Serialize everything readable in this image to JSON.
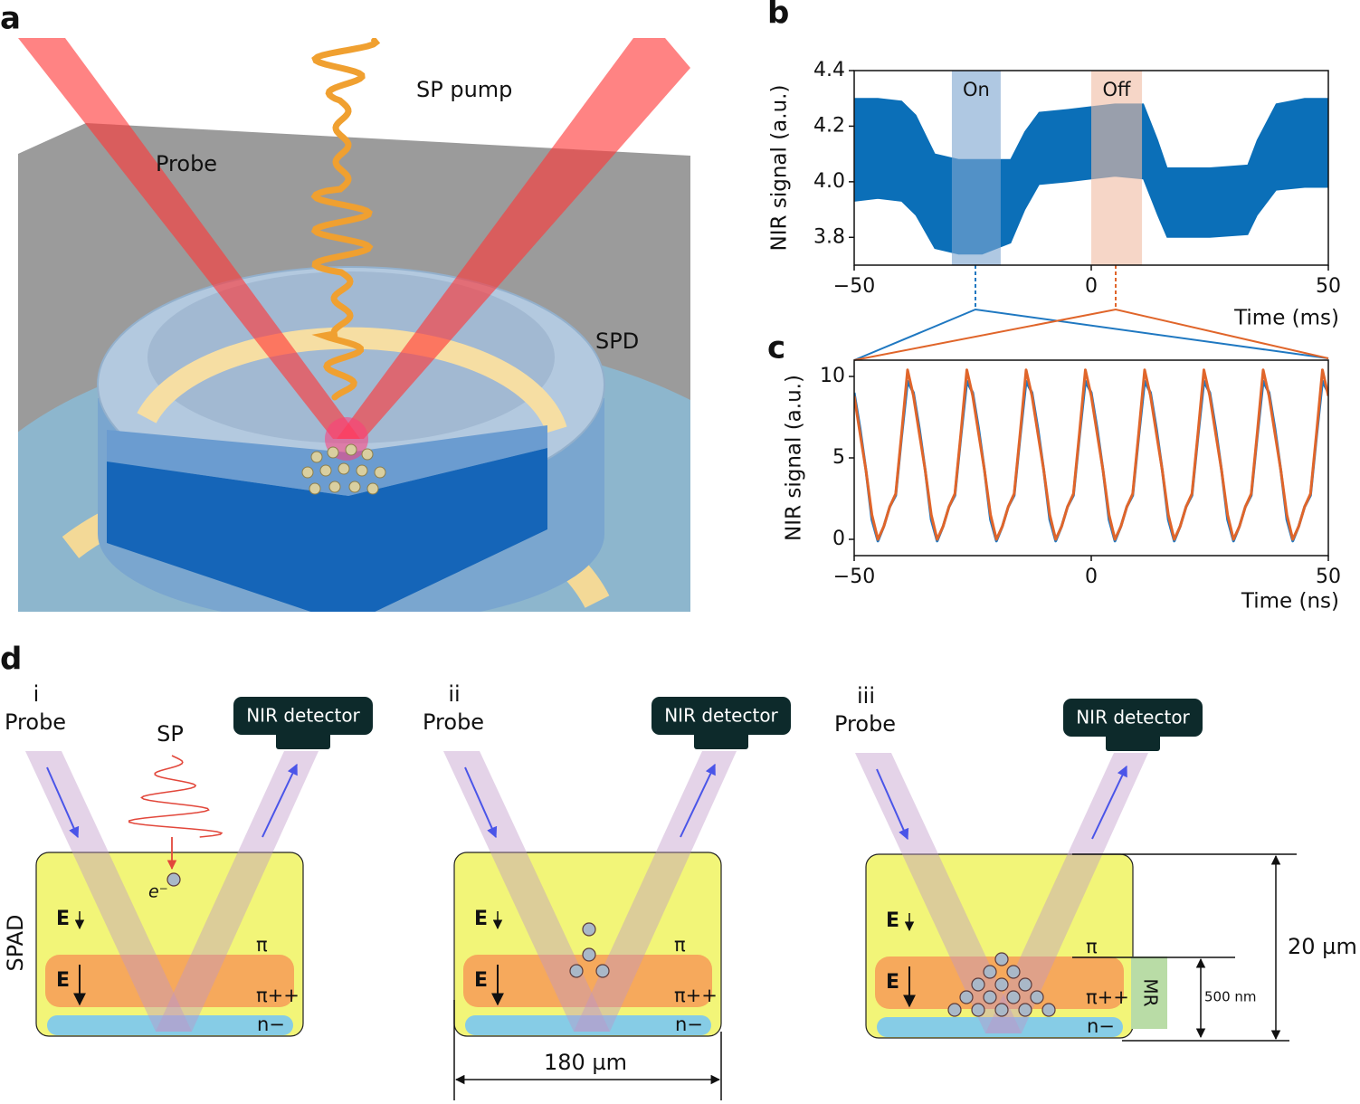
{
  "figure": {
    "panel_a": {
      "label": "a",
      "sp_pump": "SP pump",
      "probe": "Probe",
      "spd": "SPD"
    },
    "panel_d": {
      "label": "d",
      "side_label": "SPAD",
      "subpanels": [
        {
          "numeral": "i",
          "probe": "Probe",
          "detector": "NIR detector",
          "sp": "SP",
          "electron": "e⁻",
          "field_top": "E",
          "field_mid": "E",
          "layer_pi": "π",
          "layer_pipp": "π++",
          "layer_n": "n−"
        },
        {
          "numeral": "ii",
          "probe": "Probe",
          "detector": "NIR detector",
          "field_top": "E",
          "field_mid": "E",
          "layer_pi": "π",
          "layer_pipp": "π++",
          "layer_n": "n−",
          "width": "180 µm"
        },
        {
          "numeral": "iii",
          "probe": "Probe",
          "detector": "NIR detector",
          "field_top": "E",
          "field_mid": "E",
          "layer_pi": "π",
          "layer_pipp": "π++",
          "layer_n": "n−",
          "mr": "MR",
          "depletion": "500 nm",
          "thickness": "20 µm"
        }
      ]
    }
  },
  "chart_data": [
    {
      "type": "band",
      "panel_label": "b",
      "ylabel": "NIR signal (a.u.)",
      "xlabel": "Time (ms)",
      "color": "#0b6fb8",
      "x": [
        -50,
        -45,
        -40,
        -37,
        -33,
        -28,
        -23,
        -17,
        -14,
        -11,
        -5,
        0,
        5,
        11,
        14,
        16,
        25,
        33,
        35,
        39,
        45,
        50
      ],
      "upper": [
        4.3,
        4.3,
        4.29,
        4.24,
        4.1,
        4.08,
        4.08,
        4.08,
        4.18,
        4.25,
        4.26,
        4.27,
        4.28,
        4.28,
        4.15,
        4.05,
        4.05,
        4.06,
        4.15,
        4.28,
        4.3,
        4.3
      ],
      "lower": [
        3.93,
        3.94,
        3.93,
        3.88,
        3.76,
        3.74,
        3.74,
        3.78,
        3.9,
        3.99,
        4.0,
        4.01,
        4.02,
        4.01,
        3.88,
        3.8,
        3.8,
        3.81,
        3.88,
        3.97,
        3.98,
        3.98
      ],
      "shaded": [
        {
          "label": "On",
          "x": [
            -29.4,
            -19.1
          ],
          "color": "#7ea7d0"
        },
        {
          "label": "Off",
          "x": [
            0,
            10.7
          ],
          "color": "#f1bda4"
        }
      ],
      "xlim": [
        -50,
        50
      ],
      "ylim": [
        3.7,
        4.4
      ],
      "xticks": [
        {
          "value": -50,
          "label": "−50"
        },
        0,
        50
      ],
      "yticks": [
        3.8,
        {
          "value": 4.0,
          "label": "4.0"
        },
        4.2,
        4.4
      ]
    },
    {
      "type": "line",
      "panel_label": "c",
      "ylabel": "NIR signal (a.u.)",
      "xlabel": "Time (ns)",
      "x": [
        -50,
        -48.75,
        -47.5,
        -46.25,
        -45,
        -43.75,
        -42.5,
        -41.25,
        -40,
        -38.75,
        -37.5,
        -36.25,
        -35,
        -33.75,
        -32.5,
        -31.25,
        -30,
        -28.75,
        -27.5,
        -26.25,
        -25,
        -23.75,
        -22.5,
        -21.25,
        -20,
        -18.75,
        -17.5,
        -16.25,
        -15,
        -13.75,
        -12.5,
        -11.25,
        -10,
        -8.75,
        -7.5,
        -6.25,
        -5,
        -3.75,
        -2.5,
        -1.25,
        0,
        1.25,
        2.5,
        3.75,
        5,
        6.25,
        7.5,
        8.75,
        10,
        11.25,
        12.5,
        13.75,
        15,
        16.25,
        17.5,
        18.75,
        20,
        21.25,
        22.5,
        23.75,
        25,
        26.25,
        27.5,
        28.75,
        30,
        31.25,
        32.5,
        33.75,
        35,
        36.25,
        37.5,
        38.75,
        40,
        41.25,
        42.5,
        43.75,
        45,
        46.25,
        47.5,
        48.75,
        50
      ],
      "series": [
        {
          "color": "#1f78c1",
          "values": [
            9.0,
            6.8,
            4.2,
            1.2,
            -0.1,
            0.8,
            2.0,
            2.7,
            6.3,
            9.7,
            9.0,
            6.8,
            4.2,
            1.2,
            -0.1,
            0.8,
            2.0,
            2.7,
            6.3,
            9.7,
            9.0,
            6.8,
            4.2,
            1.2,
            -0.1,
            0.8,
            2.0,
            2.7,
            6.3,
            9.7,
            9.0,
            6.8,
            4.2,
            1.2,
            -0.1,
            0.8,
            2.0,
            2.7,
            6.3,
            9.7,
            9.0,
            6.8,
            4.2,
            1.2,
            -0.1,
            0.8,
            2.0,
            2.7,
            6.3,
            9.7,
            9.0,
            6.8,
            4.2,
            1.2,
            -0.1,
            0.8,
            2.0,
            2.7,
            6.3,
            9.7,
            9.0,
            6.8,
            4.2,
            1.2,
            -0.1,
            0.8,
            2.0,
            2.7,
            6.3,
            9.7,
            9.0,
            6.8,
            4.2,
            1.2,
            -0.1,
            0.8,
            2.0,
            2.7,
            6.3,
            9.7,
            9.0
          ]
        },
        {
          "color": "#e0652a",
          "values": [
            8.8,
            6.5,
            4.2,
            1.5,
            0,
            0.8,
            2.0,
            2.8,
            6.5,
            10.4,
            8.8,
            6.5,
            4.2,
            1.5,
            0,
            0.8,
            2.0,
            2.8,
            6.5,
            10.4,
            8.8,
            6.5,
            4.2,
            1.5,
            0,
            0.8,
            2.0,
            2.8,
            6.5,
            10.4,
            8.8,
            6.5,
            4.2,
            1.5,
            0,
            0.8,
            2.0,
            2.8,
            6.5,
            10.4,
            8.8,
            6.5,
            4.2,
            1.5,
            0,
            0.8,
            2.0,
            2.8,
            6.5,
            10.4,
            8.8,
            6.5,
            4.2,
            1.5,
            0,
            0.8,
            2.0,
            2.8,
            6.5,
            10.4,
            8.8,
            6.5,
            4.2,
            1.5,
            0,
            0.8,
            2.0,
            2.8,
            6.5,
            10.4,
            8.8,
            6.5,
            4.2,
            1.5,
            0,
            0.8,
            2.0,
            2.8,
            6.5,
            10.4,
            8.8
          ]
        }
      ],
      "xlim": [
        -50,
        50
      ],
      "ylim": [
        -1,
        11
      ],
      "xticks": [
        {
          "value": -50,
          "label": "−50"
        },
        0,
        50
      ],
      "yticks": [
        0,
        5,
        10
      ]
    }
  ]
}
